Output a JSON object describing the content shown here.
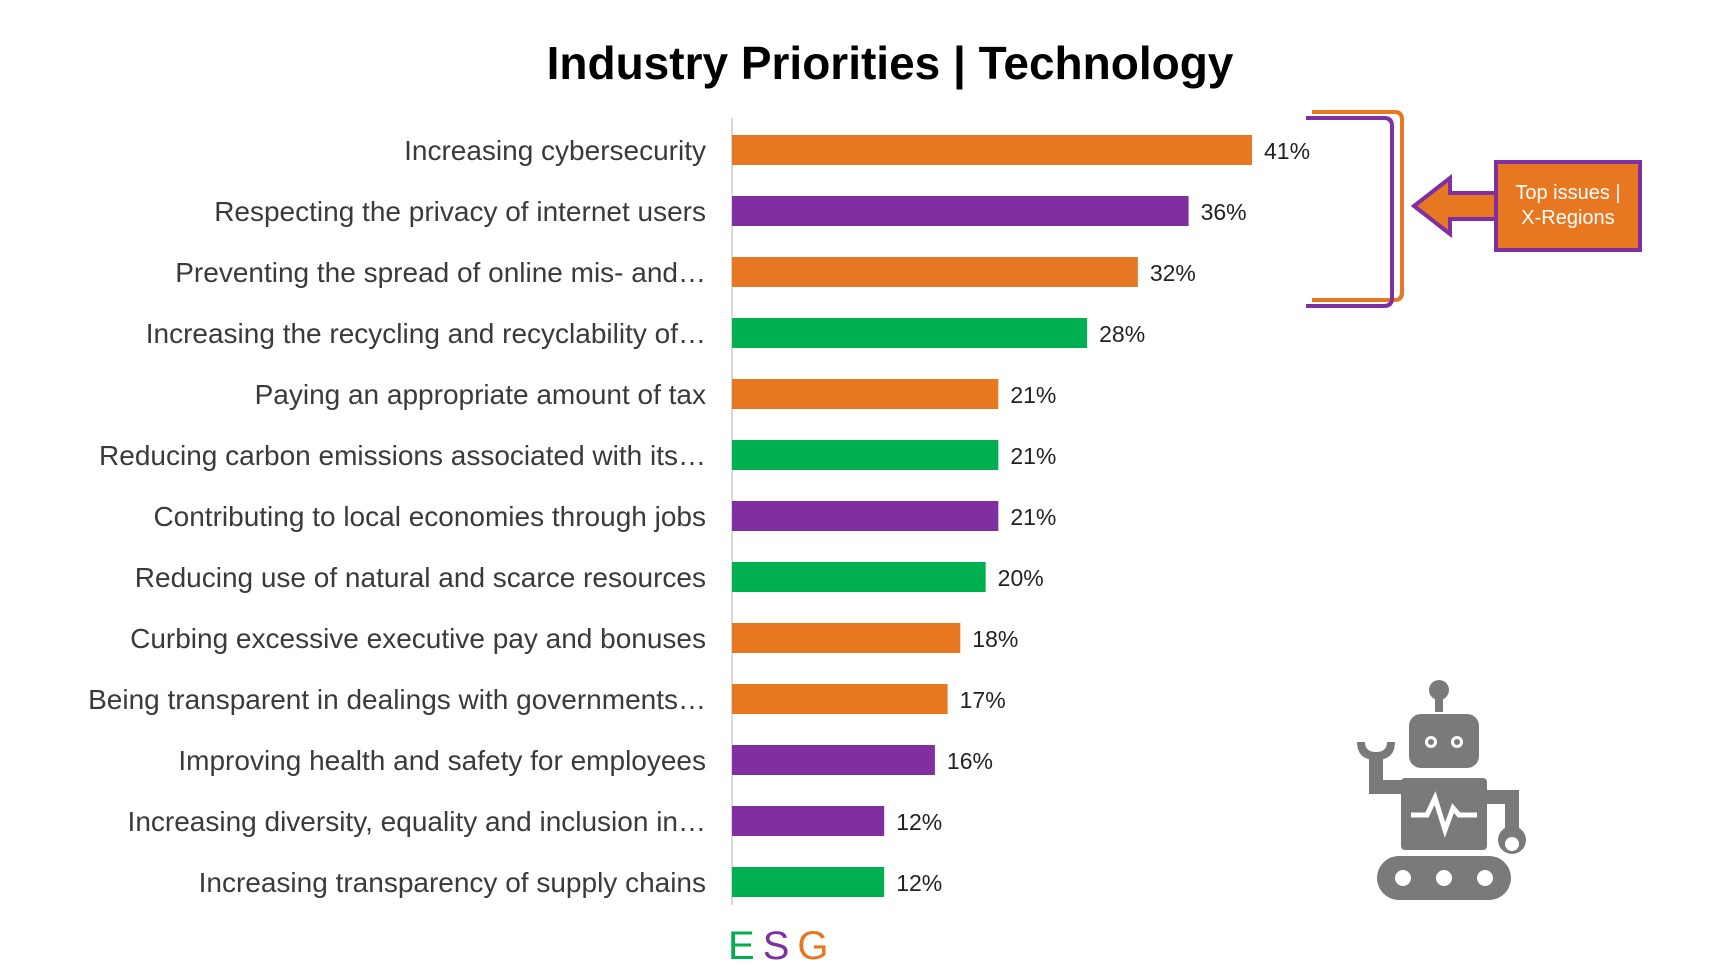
{
  "chart_data": {
    "type": "bar",
    "orientation": "horizontal",
    "title": "Industry Priorities | Technology",
    "categories": [
      "Increasing cybersecurity",
      "Respecting the privacy of internet users",
      "Preventing the spread of online mis- and…",
      "Increasing the recycling and recyclability of…",
      "Paying an appropriate amount of tax",
      "Reducing carbon emissions associated with its…",
      "Contributing to local economies through jobs",
      "Reducing use of natural and scarce resources",
      "Curbing excessive executive pay and bonuses",
      "Being transparent in dealings with governments…",
      "Improving health and safety for employees",
      "Increasing diversity, equality and inclusion in…",
      "Increasing transparency of supply chains"
    ],
    "values": [
      41,
      36,
      32,
      28,
      21,
      21,
      21,
      20,
      18,
      17,
      16,
      12,
      12
    ],
    "value_labels": [
      "41%",
      "36%",
      "32%",
      "28%",
      "21%",
      "21%",
      "21%",
      "20%",
      "18%",
      "17%",
      "16%",
      "12%",
      "12%"
    ],
    "esg_group": [
      "G",
      "S",
      "G",
      "E",
      "G",
      "E",
      "S",
      "E",
      "G",
      "G",
      "S",
      "S",
      "E"
    ],
    "xlim": [
      0,
      41
    ],
    "grid": false
  },
  "legend": {
    "items": [
      {
        "letter": "E",
        "color": "#00b050"
      },
      {
        "letter": "S",
        "color": "#7f2fa0"
      },
      {
        "letter": "G",
        "color": "#e87722"
      }
    ]
  },
  "colors": {
    "E": "#00b050",
    "S": "#7f2fa0",
    "G": "#e87722"
  },
  "callout": {
    "line1": "Top issues |",
    "line2": "X-Regions"
  },
  "icon": {
    "name": "robot-icon"
  }
}
